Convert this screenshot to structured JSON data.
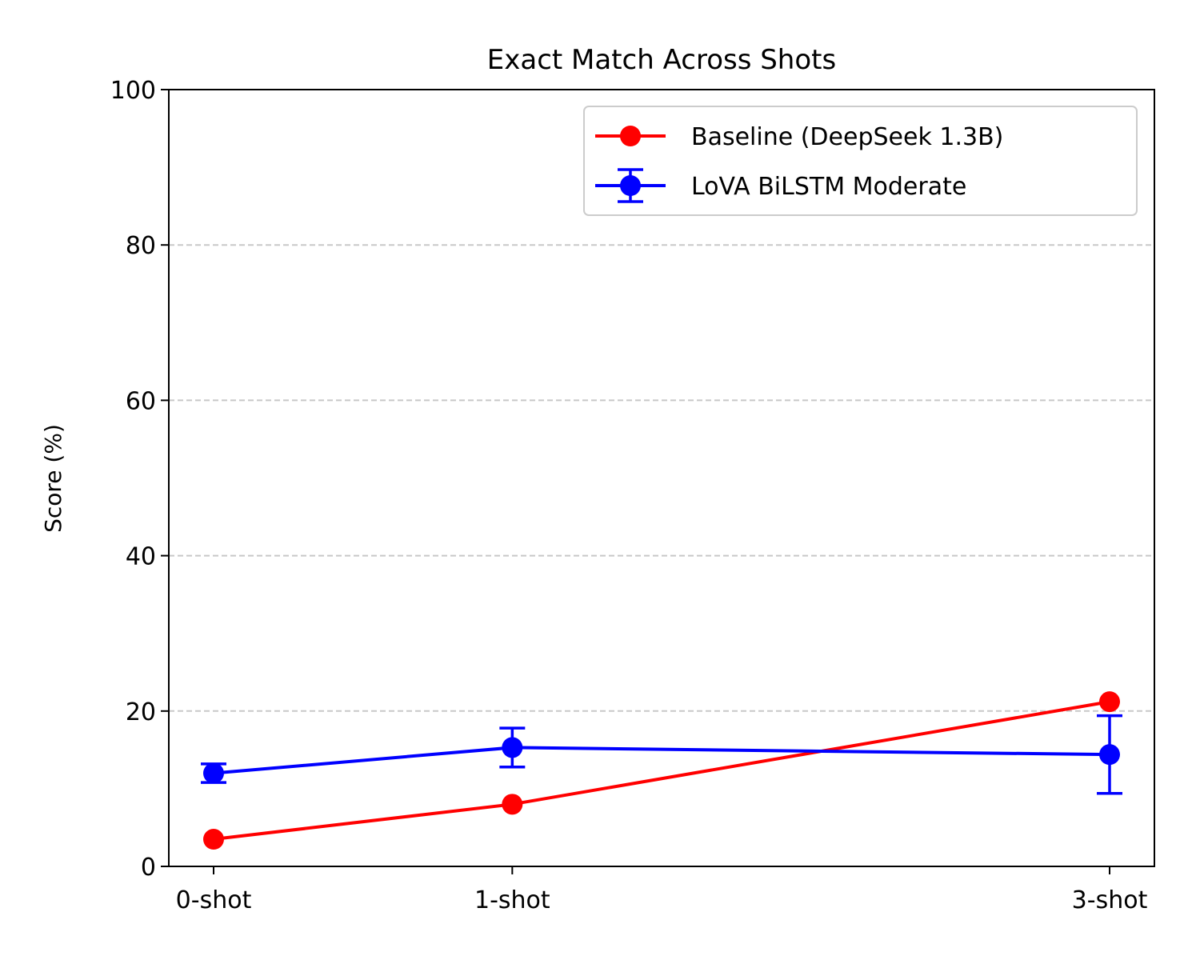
{
  "chart_data": {
    "type": "line",
    "title": "Exact Match Across Shots",
    "xlabel": "",
    "ylabel": "Score (%)",
    "x": [
      0,
      1,
      3
    ],
    "x_tick_labels": [
      "0-shot",
      "1-shot",
      "3-shot"
    ],
    "xlim": [
      -0.15,
      3.15
    ],
    "ylim": [
      0,
      100
    ],
    "y_ticks": [
      0,
      20,
      40,
      60,
      80,
      100
    ],
    "grid": {
      "axis": "y",
      "style": "dashed",
      "ticks": [
        20,
        40,
        60,
        80
      ]
    },
    "legend_position": "top-right",
    "series": [
      {
        "name": "Baseline (DeepSeek 1.3B)",
        "color": "#ff0000",
        "values": [
          3.5,
          8.0,
          21.2
        ]
      },
      {
        "name": "LoVA BiLSTM Moderate",
        "color": "#0000ff",
        "values": [
          12.0,
          15.3,
          14.4
        ],
        "error": [
          1.2,
          2.5,
          5.0
        ]
      }
    ]
  }
}
